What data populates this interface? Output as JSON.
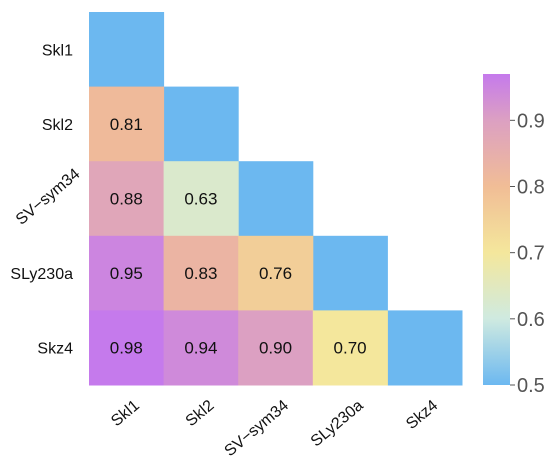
{
  "chart_data": {
    "type": "heatmap",
    "title": "",
    "xlabel": "",
    "ylabel": "",
    "x_categories": [
      "Skl1",
      "Skl2",
      "SV−sym34",
      "SLy230a",
      "Skz4"
    ],
    "y_categories": [
      "Skl1",
      "Skl2",
      "SV−sym34",
      "SLy230a",
      "Skz4"
    ],
    "lower_triangle_values": [
      [],
      [
        0.81
      ],
      [
        0.88,
        0.63
      ],
      [
        0.95,
        0.83,
        0.76
      ],
      [
        0.98,
        0.94,
        0.9,
        0.7
      ]
    ],
    "value_labels": [
      [],
      [
        "0.81"
      ],
      [
        "0.88",
        "0.63"
      ],
      [
        "0.95",
        "0.83",
        "0.76"
      ],
      [
        "0.98",
        "0.94",
        "0.90",
        "0.70"
      ]
    ],
    "diagonal_color": "#6cb8f0",
    "colorscale": {
      "range": [
        0.5,
        0.97
      ],
      "stops": [
        {
          "value": 0.5,
          "color": "#6cb8f0"
        },
        {
          "value": 0.6,
          "color": "#cfeae0"
        },
        {
          "value": 0.7,
          "color": "#f4e79c"
        },
        {
          "value": 0.8,
          "color": "#f1bd96"
        },
        {
          "value": 0.9,
          "color": "#dca0c2"
        },
        {
          "value": 0.97,
          "color": "#c57aec"
        }
      ]
    },
    "colorbar_ticks": [
      0.5,
      0.6,
      0.7,
      0.8,
      0.9
    ],
    "colorbar_tick_labels": [
      "0.5",
      "0.6",
      "0.7",
      "0.8",
      "0.9"
    ],
    "legend": "right",
    "grid": false
  }
}
